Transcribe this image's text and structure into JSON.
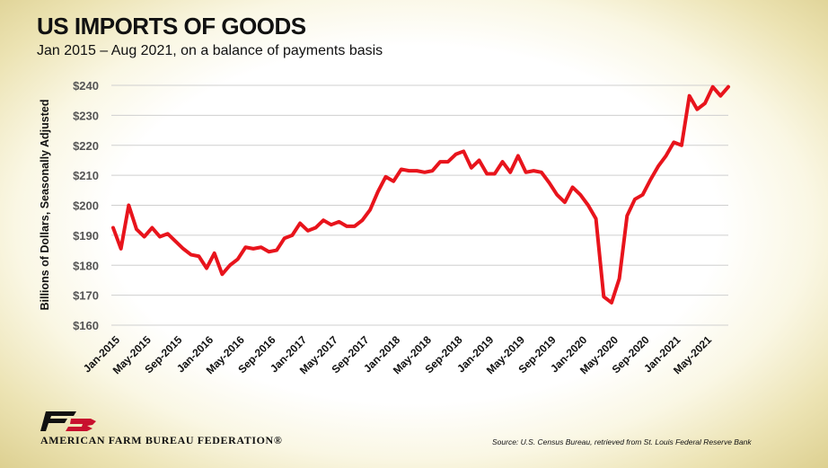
{
  "title": "US IMPORTS OF GOODS",
  "subtitle": "Jan 2015 – Aug 2021, on a balance of payments basis",
  "organization": "AMERICAN FARM BUREAU FEDERATION®",
  "source": "Source: U.S. Census Bureau, retrieved from St. Louis Federal Reserve Bank",
  "logo_text": "FB",
  "colors": {
    "line": "#e8141c",
    "grid": "#cfcfcf",
    "text": "#111111",
    "logo": "#c8102e"
  },
  "chart_data": {
    "type": "line",
    "ylabel": "Billions of Dollars, Seasonally Adjusted",
    "xlabel": "",
    "ylim": [
      160,
      240
    ],
    "y_ticks": [
      160,
      170,
      180,
      190,
      200,
      210,
      220,
      230,
      240
    ],
    "y_tick_labels": [
      "$160",
      "$170",
      "$180",
      "$190",
      "$200",
      "$210",
      "$220",
      "$230",
      "$240"
    ],
    "grid": "horizontal",
    "x_tick_labels": [
      "Jan-2015",
      "May-2015",
      "Sep-2015",
      "Jan-2016",
      "May-2016",
      "Sep-2016",
      "Jan-2017",
      "May-2017",
      "Sep-2017",
      "Jan-2018",
      "May-2018",
      "Sep-2018",
      "Jan-2019",
      "May-2019",
      "Sep-2019",
      "Jan-2020",
      "May-2020",
      "Sep-2020",
      "Jan-2021",
      "May-2021"
    ],
    "series": [
      {
        "values": [
          192.5,
          185.5,
          200.0,
          192.0,
          189.5,
          192.5,
          189.5,
          190.5,
          188.0,
          185.5,
          183.5,
          183.0,
          179.0,
          184.0,
          177.0,
          180.0,
          182.0,
          186.0,
          185.5,
          186.0,
          184.5,
          185.0,
          189.0,
          190.0,
          194.0,
          191.5,
          192.5,
          195.0,
          193.5,
          194.5,
          193.0,
          193.0,
          195.0,
          198.5,
          204.5,
          209.5,
          208.0,
          212.0,
          211.5,
          211.5,
          211.0,
          211.5,
          214.5,
          214.5,
          217.0,
          218.0,
          212.5,
          215.0,
          210.5,
          210.5,
          214.5,
          211.0,
          216.5,
          211.0,
          211.5,
          211.0,
          207.5,
          203.5,
          201.0,
          206.0,
          203.5,
          200.0,
          195.5,
          169.5,
          167.5,
          175.5,
          196.5,
          202.0,
          203.5,
          208.5,
          213.0,
          216.5,
          221.0,
          220.0,
          236.5,
          232.0,
          234.0,
          239.5,
          236.5,
          239.5
        ]
      }
    ]
  }
}
